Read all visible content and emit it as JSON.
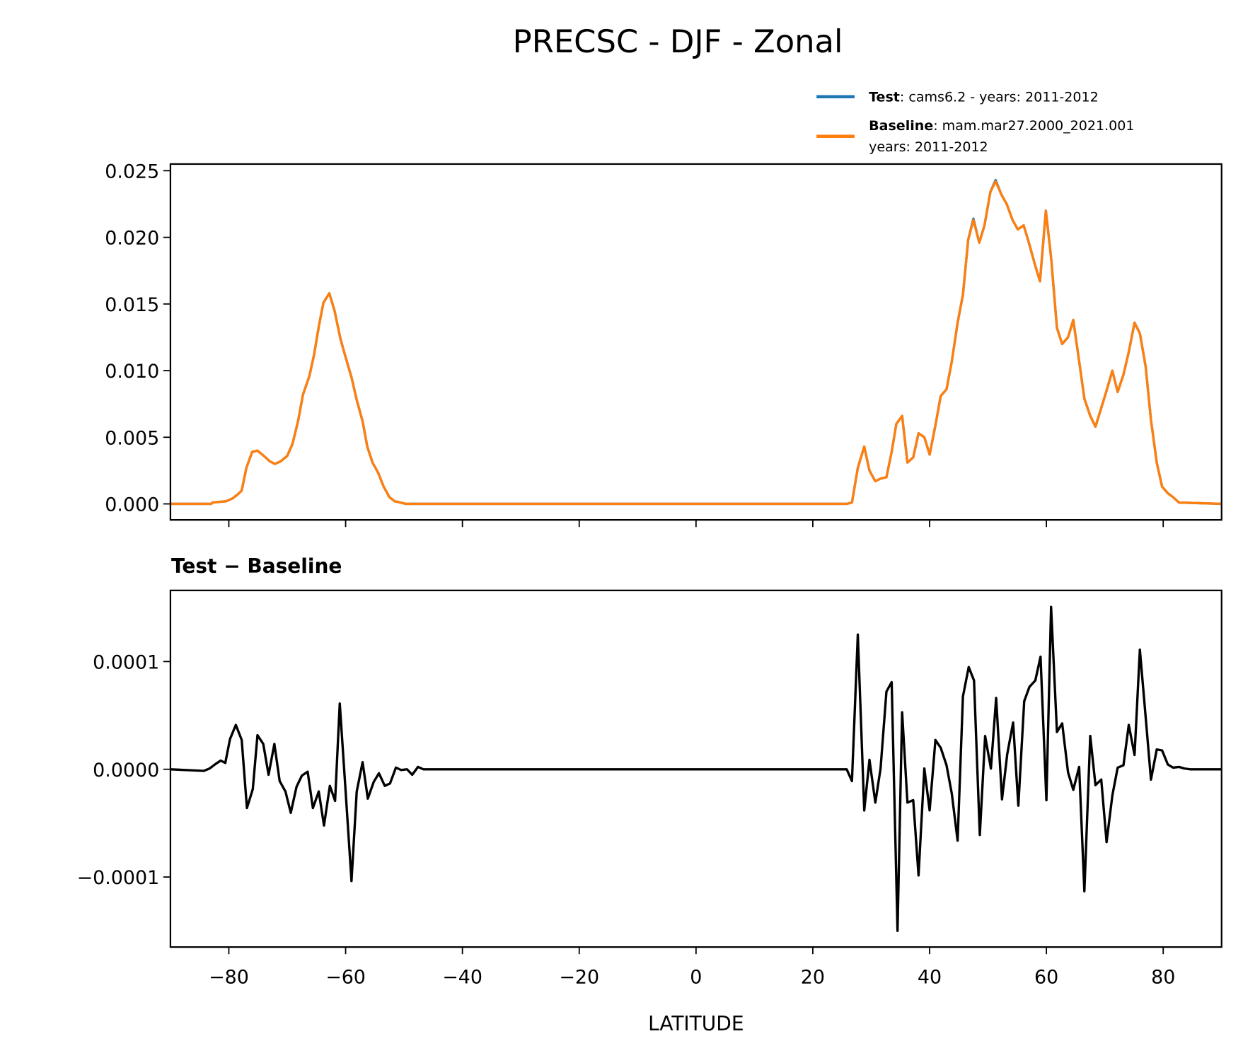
{
  "chart_data": [
    {
      "type": "line",
      "title": "PRECSC - DJF - Zonal",
      "xlabel": "",
      "ylabel": "",
      "xlim": [
        -90,
        90
      ],
      "ylim": [
        -0.0012,
        0.0255
      ],
      "grid": false,
      "legend_placement": "top-right, above axes",
      "x_ticks": [
        -80,
        -60,
        -40,
        -20,
        0,
        20,
        40,
        60,
        80
      ],
      "x_tick_labels_shown": false,
      "y_ticks": [
        0.0,
        0.005,
        0.01,
        0.015,
        0.02,
        0.025
      ],
      "y_tick_labels": [
        "0.000",
        "0.005",
        "0.010",
        "0.015",
        "0.020",
        "0.025"
      ],
      "legend": [
        {
          "bold": "Test",
          "text": ": cams6.2 - years: 2011-2012",
          "text2": "",
          "color": "#1f77b4"
        },
        {
          "bold": "Baseline",
          "text": ": mam.mar27.2000_2021.001",
          "text2": "years: 2011-2012",
          "color": "#ff7f0e"
        }
      ],
      "x": [
        -90,
        -83,
        -82.8,
        -80.5,
        -79.4,
        -78.5,
        -77.8,
        -77.0,
        -76.0,
        -75.1,
        -74.0,
        -73.0,
        -72.1,
        -71.1,
        -70.0,
        -69.1,
        -68.1,
        -67.3,
        -66.2,
        -65.4,
        -64.6,
        -63.8,
        -62.8,
        -61.9,
        -60.9,
        -60.0,
        -59.0,
        -58.1,
        -57.1,
        -56.3,
        -55.4,
        -54.4,
        -53.5,
        -52.5,
        -51.6,
        -50.6,
        -49.7,
        25.8,
        26.7,
        27.7,
        28.8,
        29.7,
        30.7,
        31.6,
        32.6,
        33.5,
        34.3,
        35.3,
        36.2,
        37.2,
        38.1,
        39.1,
        40.0,
        41.0,
        41.9,
        42.9,
        43.8,
        44.8,
        45.7,
        46.6,
        47.5,
        48.5,
        49.4,
        50.4,
        51.3,
        52.3,
        53.2,
        54.2,
        55.1,
        56.1,
        57.0,
        58.0,
        58.9,
        59.9,
        60.8,
        61.8,
        62.7,
        63.7,
        64.6,
        65.6,
        66.5,
        67.5,
        68.4,
        69.4,
        70.3,
        71.3,
        72.2,
        73.2,
        74.1,
        75.1,
        76.0,
        77.0,
        77.9,
        78.9,
        79.8,
        80.8,
        81.7,
        82.7,
        90
      ],
      "series": [
        {
          "name": "Test",
          "color": "#1f77b4",
          "values": [
            0,
            0,
            0.0001,
            0.0002,
            0.0004,
            0.0007,
            0.001,
            0.0027,
            0.0039,
            0.004,
            0.0036,
            0.0032,
            0.003,
            0.0032,
            0.0036,
            0.0045,
            0.0063,
            0.0082,
            0.0096,
            0.0112,
            0.0133,
            0.0151,
            0.0158,
            0.0145,
            0.0124,
            0.011,
            0.0095,
            0.0078,
            0.0062,
            0.0043,
            0.0031,
            0.0023,
            0.0013,
            0.0005,
            0.0002,
            0.0001,
            0,
            0,
            0.0001,
            0.0027,
            0.0043,
            0.0025,
            0.0017,
            0.0019,
            0.002,
            0.0039,
            0.006,
            0.0066,
            0.0031,
            0.0035,
            0.0053,
            0.005,
            0.0037,
            0.0059,
            0.0081,
            0.0086,
            0.0107,
            0.0136,
            0.0157,
            0.0198,
            0.0214,
            0.0196,
            0.0209,
            0.0234,
            0.0243,
            0.0232,
            0.0225,
            0.0213,
            0.0206,
            0.0209,
            0.0196,
            0.018,
            0.0167,
            0.022,
            0.0185,
            0.0132,
            0.012,
            0.0125,
            0.0138,
            0.0107,
            0.0079,
            0.0066,
            0.0058,
            0.0072,
            0.0085,
            0.01,
            0.0084,
            0.0097,
            0.0114,
            0.0136,
            0.0128,
            0.0103,
            0.0063,
            0.0031,
            0.0013,
            0.0008,
            0.0005,
            0.0001,
            0
          ]
        },
        {
          "name": "Baseline",
          "color": "#ff7f0e",
          "values": [
            0,
            0,
            0.0001,
            0.0002,
            0.0004,
            0.0007,
            0.001,
            0.0027,
            0.0039,
            0.004,
            0.0036,
            0.0032,
            0.003,
            0.0032,
            0.0036,
            0.0045,
            0.0063,
            0.0082,
            0.0096,
            0.0112,
            0.0133,
            0.0151,
            0.0158,
            0.0145,
            0.0124,
            0.011,
            0.0095,
            0.0078,
            0.0062,
            0.0043,
            0.0031,
            0.0023,
            0.0013,
            0.0005,
            0.0002,
            0.0001,
            0,
            0,
            0.0001,
            0.0027,
            0.0043,
            0.0025,
            0.0017,
            0.0019,
            0.002,
            0.0039,
            0.006,
            0.0066,
            0.0031,
            0.0035,
            0.0053,
            0.005,
            0.0037,
            0.0059,
            0.0081,
            0.0086,
            0.0107,
            0.0136,
            0.0157,
            0.0198,
            0.0213,
            0.0196,
            0.0209,
            0.0234,
            0.0242,
            0.0232,
            0.0225,
            0.0213,
            0.0206,
            0.0209,
            0.0196,
            0.018,
            0.0167,
            0.022,
            0.0185,
            0.0132,
            0.012,
            0.0125,
            0.0138,
            0.0107,
            0.0079,
            0.0066,
            0.0058,
            0.0072,
            0.0085,
            0.01,
            0.0084,
            0.0097,
            0.0114,
            0.0136,
            0.0128,
            0.0103,
            0.0063,
            0.0031,
            0.0013,
            0.0008,
            0.0005,
            0.0001,
            0
          ]
        }
      ]
    },
    {
      "type": "line",
      "title": "Test − Baseline",
      "xlabel": "LATITUDE",
      "ylabel": "",
      "xlim": [
        -90,
        90
      ],
      "ylim": [
        -0.000165,
        0.000166
      ],
      "grid": false,
      "x_ticks": [
        -80,
        -60,
        -40,
        -20,
        0,
        20,
        40,
        60,
        80
      ],
      "x_tick_labels": [
        "−80",
        "−60",
        "−40",
        "−20",
        "0",
        "20",
        "40",
        "60",
        "80"
      ],
      "y_ticks": [
        0.0001,
        0.0,
        -0.0001
      ],
      "y_tick_labels": [
        "0.0001",
        "0.0000",
        "−0.0001"
      ],
      "x": [
        -90,
        -84.3,
        -83.3,
        -82.4,
        -81.4,
        -80.6,
        -79.8,
        -78.8,
        -77.8,
        -76.9,
        -75.9,
        -75.1,
        -74.1,
        -73.2,
        -72.2,
        -71.3,
        -70.3,
        -69.4,
        -68.4,
        -67.5,
        -66.5,
        -65.6,
        -64.6,
        -63.7,
        -62.7,
        -61.8,
        -61.0,
        -60.0,
        -59.0,
        -58.1,
        -57.1,
        -56.2,
        -55.2,
        -54.3,
        -53.3,
        -52.4,
        -51.4,
        -50.5,
        -49.5,
        -48.6,
        -47.6,
        -46.7,
        25.8,
        26.7,
        27.7,
        28.8,
        29.7,
        30.7,
        31.6,
        32.6,
        33.5,
        34.5,
        35.3,
        36.2,
        37.2,
        38.1,
        39.1,
        40.0,
        41.0,
        41.9,
        42.9,
        43.8,
        44.8,
        45.7,
        46.7,
        47.6,
        48.6,
        49.5,
        50.5,
        51.4,
        52.4,
        53.3,
        54.3,
        55.2,
        56.2,
        57.1,
        58.1,
        59.0,
        60.0,
        60.8,
        61.8,
        62.7,
        63.7,
        64.6,
        65.6,
        66.5,
        67.5,
        68.4,
        69.4,
        70.3,
        71.3,
        72.2,
        73.2,
        74.1,
        75.1,
        76.0,
        77.0,
        77.9,
        78.9,
        79.8,
        80.8,
        81.7,
        82.7,
        83.6,
        84.6,
        90
      ],
      "series": [
        {
          "color": "#000000",
          "values": [
            0,
            -1.5e-06,
            7e-07,
            4.4e-06,
            8.1e-06,
            5.9e-06,
            2.79e-05,
            4.12e-05,
            2.72e-05,
            -3.6e-05,
            -1.84e-05,
            3.16e-05,
            2.35e-05,
            -5.1e-06,
            2.35e-05,
            -1.1e-05,
            -2.06e-05,
            -4.04e-05,
            -1.62e-05,
            -5.9e-06,
            -2.2e-06,
            -3.6e-05,
            -2.06e-05,
            -5.22e-05,
            -1.54e-05,
            -2.94e-05,
            6.1e-05,
            -2.06e-05,
            -0.0001037,
            -2.06e-05,
            6.6e-06,
            -2.72e-05,
            -1.18e-05,
            -3.7e-06,
            -1.54e-05,
            -1.32e-05,
            1.5e-06,
            -7e-07,
            0,
            -5.1e-06,
            2.2e-06,
            0,
            0,
            -1.1e-05,
            0.000125,
            -3.82e-05,
            8.8e-06,
            -3.09e-05,
            7e-07,
            7.21e-05,
            8.09e-05,
            -0.00015,
            5.29e-05,
            -3.09e-05,
            -2.87e-05,
            -9.85e-05,
            7e-07,
            -3.82e-05,
            2.72e-05,
            1.99e-05,
            3.7e-06,
            -2.28e-05,
            -6.62e-05,
            6.76e-05,
            9.49e-05,
            8.24e-05,
            -6.1e-05,
            3.09e-05,
            7e-07,
            6.62e-05,
            -2.79e-05,
            1.4e-05,
            4.34e-05,
            -3.38e-05,
            6.32e-05,
            7.65e-05,
            8.24e-05,
            0.0001044,
            -2.87e-05,
            0.0001507,
            3.46e-05,
            4.26e-05,
            -2.9e-06,
            -1.91e-05,
            2.2e-06,
            -0.0001132,
            3.09e-05,
            -1.47e-05,
            -9.6e-06,
            -6.76e-05,
            -2.43e-05,
            1.5e-06,
            3.7e-06,
            4.12e-05,
            1.32e-05,
            0.000111,
            4.85e-05,
            -9.6e-06,
            1.84e-05,
            1.76e-05,
            4.4e-06,
            1.5e-06,
            2.2e-06,
            7e-07,
            0,
            0
          ]
        }
      ]
    }
  ]
}
